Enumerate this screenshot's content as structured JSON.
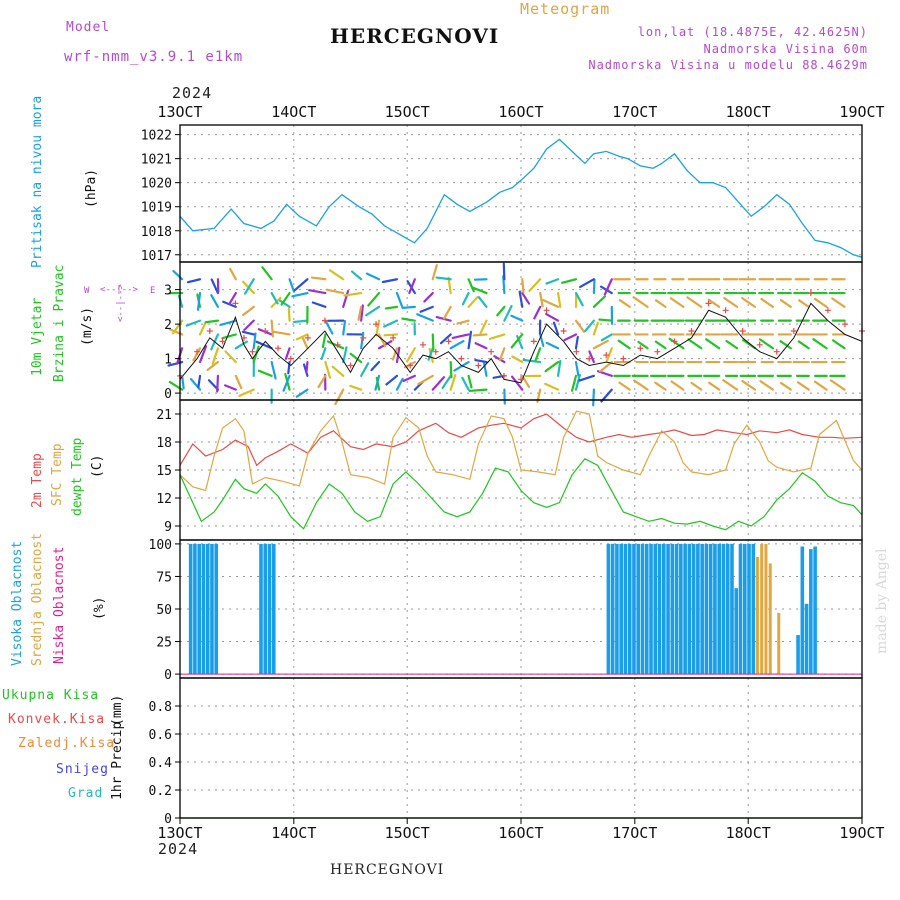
{
  "header": {
    "model_label": "Model",
    "model_name": "wrf-nmm_v3.9.1 e1km",
    "title": "HERCEGNOVI",
    "meteogram_label": "Meteogram",
    "lonlat": "lon,lat (18.4875E, 42.4625N)",
    "station_elev": "Nadmorska Visina 60m",
    "model_elev": "Nadmorska Visina u modelu 88.4629m",
    "footer_title": "HERCEGNOVI",
    "credit": "made by Angel"
  },
  "colors": {
    "pressure": "#1ba1e2",
    "temp2m": "#e84b4b",
    "sfc": "#e0a640",
    "dewpt": "#22c422",
    "cloud_high": "#1a9ee8",
    "cloud_mid": "#e0a640",
    "cloud_low": "#e0208f",
    "precip_total": "#22c422",
    "precip_conv": "#e84b4b",
    "precip_frozen": "#f08a3a",
    "snow": "#4444dd",
    "grad": "#22bbbb",
    "wind_label": "#b44ad0",
    "header_purple": "#b44ad0"
  },
  "chart_data": [
    {
      "type": "line",
      "name": "pressure",
      "ylabel_series": "Pritisak na nivou mora",
      "ylabel_unit": "(hPa)",
      "ylim": [
        1016.7,
        1022.4
      ],
      "yticks": [
        "1017",
        "1018",
        "1019",
        "1020",
        "1021",
        "1022"
      ],
      "ytick_values": [
        1017,
        1018,
        1019,
        1020,
        1021,
        1022
      ],
      "x_days": [
        0,
        0.3,
        0.8,
        1.2,
        1.5,
        1.9,
        2.2,
        2.5,
        2.8,
        3.2,
        3.5,
        3.8,
        4.2,
        4.5,
        4.8,
        5.2,
        5.5,
        5.8,
        6.2,
        6.5,
        6.8,
        7.2,
        7.5,
        7.8,
        8.0,
        8.3,
        8.6,
        8.9,
        9.2,
        9.5,
        9.7,
        10.0,
        10.3,
        10.5,
        10.8,
        11.1,
        11.3,
        11.6,
        11.9,
        12.2,
        12.5,
        12.8,
        13.1,
        13.4,
        13.7,
        14.0,
        14.3,
        14.6,
        14.9,
        15.2,
        15.5,
        15.8,
        16.0
      ],
      "values": [
        1018.6,
        1018.0,
        1018.1,
        1018.9,
        1018.3,
        1018.1,
        1018.4,
        1019.1,
        1018.6,
        1018.2,
        1019.0,
        1019.5,
        1019.0,
        1018.7,
        1018.2,
        1017.8,
        1017.5,
        1018.1,
        1019.5,
        1019.1,
        1018.8,
        1019.2,
        1019.6,
        1019.8,
        1020.1,
        1020.6,
        1021.4,
        1021.8,
        1021.3,
        1020.8,
        1021.2,
        1021.3,
        1021.1,
        1021.0,
        1020.7,
        1020.6,
        1020.8,
        1021.2,
        1020.5,
        1020.0,
        1020.0,
        1019.8,
        1019.2,
        1018.6,
        1019.0,
        1019.5,
        1019.1,
        1018.3,
        1017.6,
        1017.5,
        1017.3,
        1017.0,
        1016.9
      ]
    },
    {
      "type": "line",
      "name": "wind",
      "ylabel_series": [
        "10m Vjetar",
        "Brzina i Pravac"
      ],
      "ylabel_unit": "(m/s)",
      "compass": {
        "n": "N",
        "w": "W",
        "e": "E",
        "s": "S",
        "arrows": "<--|-->"
      },
      "ylim": [
        -0.2,
        3.8
      ],
      "yticks": [
        "0",
        "1",
        "2",
        "3"
      ],
      "ytick_values": [
        0,
        1,
        2,
        3
      ],
      "x_days": [
        0,
        0.4,
        0.7,
        1.0,
        1.3,
        1.5,
        1.7,
        2.0,
        2.3,
        2.6,
        3.0,
        3.4,
        3.7,
        4.0,
        4.3,
        4.6,
        5.0,
        5.4,
        5.7,
        6.0,
        6.3,
        6.6,
        7.0,
        7.3,
        7.6,
        8.0,
        8.3,
        8.6,
        9.0,
        9.3,
        9.6,
        10.0,
        10.4,
        10.8,
        11.2,
        11.6,
        12.0,
        12.4,
        12.8,
        13.2,
        13.6,
        14.0,
        14.4,
        14.8,
        15.2,
        15.6,
        16.0
      ],
      "gust": [
        0.5,
        1.2,
        1.8,
        1.5,
        2.6,
        1.6,
        1.2,
        1.8,
        1.3,
        1.0,
        1.6,
        2.1,
        1.4,
        0.8,
        1.6,
        2.0,
        1.6,
        0.8,
        1.4,
        1.2,
        1.5,
        1.0,
        0.8,
        1.2,
        0.5,
        0.4,
        1.5,
        2.4,
        1.8,
        1.2,
        1.0,
        1.1,
        1.0,
        1.3,
        1.2,
        1.5,
        1.8,
        2.6,
        2.4,
        1.8,
        1.4,
        1.2,
        1.8,
        2.9,
        2.4,
        2.0,
        1.8
      ],
      "speed": [
        0.4,
        1.0,
        1.6,
        1.3,
        2.2,
        1.4,
        1.0,
        1.5,
        1.1,
        0.8,
        1.3,
        1.8,
        1.2,
        0.6,
        1.3,
        1.7,
        1.3,
        0.6,
        1.1,
        1.0,
        1.2,
        0.8,
        0.6,
        1.0,
        0.4,
        0.3,
        1.2,
        2.0,
        1.5,
        1.0,
        0.8,
        0.9,
        0.8,
        1.1,
        1.0,
        1.3,
        1.6,
        2.4,
        2.2,
        1.6,
        1.2,
        1.0,
        1.6,
        2.6,
        2.1,
        1.7,
        1.5
      ]
    },
    {
      "type": "line",
      "name": "temperature",
      "ylabel_series": [
        "2m Temp",
        "SFC Temp",
        "dewpt Temp"
      ],
      "ylabel_unit": "(C)",
      "ylim": [
        7.5,
        22.5
      ],
      "yticks": [
        "9",
        "12",
        "15",
        "18",
        "21"
      ],
      "ytick_values": [
        9,
        12,
        15,
        18,
        21
      ],
      "series": [
        {
          "name": "2m Temp",
          "x_days": [
            0,
            0.3,
            0.6,
            1.0,
            1.3,
            1.6,
            1.8,
            2.0,
            2.3,
            2.6,
            3.0,
            3.3,
            3.6,
            4.0,
            4.3,
            4.6,
            5.0,
            5.3,
            5.6,
            6.0,
            6.3,
            6.6,
            7.0,
            7.3,
            7.6,
            8.0,
            8.3,
            8.6,
            9.0,
            9.3,
            9.6,
            10.0,
            10.3,
            10.6,
            11.0,
            11.3,
            11.6,
            12.0,
            12.3,
            12.6,
            13.0,
            13.3,
            13.6,
            14.0,
            14.3,
            14.6,
            15.0,
            15.3,
            15.6,
            16.0
          ],
          "values": [
            15.5,
            17.8,
            16.5,
            17.2,
            18.2,
            17.5,
            15.5,
            16.3,
            17.0,
            17.8,
            16.8,
            18.5,
            19.2,
            17.5,
            17.2,
            17.8,
            17.5,
            18.0,
            19.2,
            20.0,
            19.0,
            18.5,
            19.5,
            19.8,
            20.0,
            19.5,
            20.5,
            21.0,
            19.5,
            18.5,
            18.0,
            18.5,
            18.8,
            18.5,
            18.8,
            19.0,
            19.3,
            18.7,
            18.8,
            19.3,
            19.0,
            18.8,
            19.2,
            19.0,
            19.3,
            18.8,
            18.5,
            18.5,
            18.4,
            18.5
          ]
        },
        {
          "name": "SFC Temp",
          "x_days": [
            0,
            0.3,
            0.6,
            0.8,
            1.0,
            1.3,
            1.5,
            1.7,
            2.0,
            2.4,
            2.8,
            3.0,
            3.3,
            3.6,
            3.8,
            4.0,
            4.4,
            4.8,
            5.0,
            5.3,
            5.6,
            5.8,
            6.0,
            6.4,
            6.8,
            7.0,
            7.3,
            7.6,
            7.8,
            8.0,
            8.4,
            8.8,
            9.0,
            9.3,
            9.6,
            9.8,
            10.0,
            10.4,
            10.8,
            11.0,
            11.3,
            11.6,
            11.8,
            12.0,
            12.4,
            12.8,
            13.0,
            13.3,
            13.6,
            13.8,
            14.0,
            14.4,
            14.8,
            15.0,
            15.4,
            15.8,
            16.0
          ],
          "values": [
            14.5,
            13.2,
            12.8,
            16.5,
            19.5,
            20.5,
            19.2,
            13.5,
            14.2,
            13.8,
            13.3,
            16.8,
            19.2,
            20.8,
            18.0,
            14.5,
            14.2,
            13.5,
            18.5,
            20.6,
            19.5,
            16.5,
            14.8,
            14.5,
            14.0,
            17.8,
            20.8,
            20.5,
            18.5,
            15.0,
            14.8,
            14.5,
            18.5,
            21.3,
            21.0,
            16.5,
            15.8,
            15.0,
            14.5,
            16.5,
            19.2,
            18.0,
            15.8,
            14.8,
            14.5,
            15.0,
            17.8,
            19.8,
            18.0,
            16.0,
            15.3,
            14.8,
            15.2,
            18.8,
            20.3,
            16.0,
            15.0
          ]
        },
        {
          "name": "dewpt Temp",
          "x_days": [
            0,
            0.3,
            0.5,
            0.8,
            1.0,
            1.3,
            1.5,
            1.8,
            2.0,
            2.3,
            2.6,
            2.9,
            3.2,
            3.5,
            3.8,
            4.1,
            4.4,
            4.7,
            5.0,
            5.3,
            5.6,
            5.9,
            6.2,
            6.5,
            6.8,
            7.1,
            7.4,
            7.7,
            8.0,
            8.3,
            8.6,
            8.9,
            9.2,
            9.5,
            9.8,
            10.1,
            10.4,
            10.7,
            11.0,
            11.3,
            11.6,
            11.9,
            12.2,
            12.5,
            12.8,
            13.1,
            13.4,
            13.7,
            14.0,
            14.3,
            14.6,
            14.9,
            15.2,
            15.5,
            15.8,
            16.0
          ],
          "values": [
            14.5,
            11.5,
            9.5,
            10.5,
            11.8,
            14.0,
            13.0,
            12.5,
            13.5,
            12.2,
            10.0,
            8.7,
            11.5,
            13.5,
            12.5,
            10.5,
            9.5,
            10.0,
            13.5,
            14.8,
            13.5,
            12.0,
            10.5,
            10.0,
            10.5,
            12.5,
            15.2,
            14.8,
            12.8,
            11.5,
            11.0,
            11.5,
            14.5,
            16.2,
            15.5,
            13.0,
            10.5,
            10.0,
            9.5,
            9.8,
            9.3,
            9.2,
            9.5,
            9.0,
            8.6,
            9.5,
            9.0,
            10.0,
            11.8,
            13.0,
            14.7,
            13.8,
            12.2,
            11.5,
            11.2,
            10.2
          ]
        }
      ]
    },
    {
      "type": "bar",
      "name": "cloudiness",
      "ylabel_series": [
        "Visoka Oblacnost",
        "Srednja Oblacnost",
        "Niska Oblacnost"
      ],
      "ylabel_unit": "(%)",
      "ylim": [
        -3,
        103
      ],
      "yticks": [
        "0",
        "25",
        "50",
        "75",
        "100"
      ],
      "ytick_values": [
        0,
        25,
        50,
        75,
        100
      ],
      "series": [
        {
          "name": "Visoka Oblacnost",
          "x_days": [
            0.25,
            0.35,
            0.45,
            0.55,
            0.65,
            0.75,
            0.85,
            1.9,
            2.0,
            2.1,
            2.2,
            10.05,
            10.15,
            10.25,
            10.35,
            10.45,
            10.55,
            10.65,
            10.75,
            10.85,
            10.95,
            11.05,
            11.15,
            11.25,
            11.35,
            11.45,
            11.55,
            11.65,
            11.75,
            11.85,
            11.95,
            12.05,
            12.15,
            12.25,
            12.35,
            12.45,
            12.55,
            12.65,
            12.75,
            12.85,
            12.95,
            13.05,
            13.15,
            13.25,
            13.35,
            13.45,
            14.5,
            14.6,
            14.7,
            14.8,
            14.9
          ],
          "values": [
            100,
            100,
            100,
            100,
            100,
            100,
            100,
            100,
            100,
            100,
            100,
            100,
            100,
            100,
            100,
            100,
            100,
            100,
            100,
            100,
            100,
            100,
            100,
            100,
            100,
            100,
            100,
            100,
            100,
            100,
            100,
            100,
            100,
            100,
            100,
            100,
            100,
            100,
            100,
            100,
            100,
            66,
            100,
            100,
            100,
            100,
            30,
            98,
            54,
            96,
            98
          ]
        },
        {
          "name": "Srednja Oblacnost",
          "x_days": [
            0.3,
            0.4,
            0.6,
            0.8,
            10.1,
            10.3,
            10.5,
            10.7,
            10.9,
            11.1,
            11.3,
            11.5,
            11.7,
            11.9,
            12.1,
            12.3,
            12.5,
            12.7,
            12.9,
            13.1,
            13.3,
            13.5,
            13.6,
            13.7,
            13.8,
            14.0
          ],
          "values": [
            100,
            55,
            100,
            100,
            100,
            100,
            100,
            100,
            100,
            100,
            100,
            100,
            100,
            100,
            100,
            100,
            100,
            100,
            100,
            100,
            100,
            90,
            100,
            100,
            85,
            47
          ]
        },
        {
          "name": "Niska Oblacnost",
          "x_days": [
            0.0,
            16.0
          ],
          "values": [
            0,
            0
          ]
        }
      ]
    },
    {
      "type": "line",
      "name": "precipitation",
      "ylabel_series": "1hr Precip",
      "ylabel_unit": "(mm)",
      "legend": [
        "Ukupna Kisa",
        "Konvek.Kisa",
        "Zaledj.Kisa",
        "Snijeg",
        "Grad"
      ],
      "ylim": [
        0,
        1.0
      ],
      "yticks": [
        "0",
        "0.2",
        "0.4",
        "0.6",
        "0.8"
      ],
      "ytick_values": [
        0,
        0.2,
        0.4,
        0.6,
        0.8
      ],
      "x_days": [
        0,
        16
      ],
      "values": [
        0,
        0
      ]
    }
  ],
  "xaxis": {
    "year": "2024",
    "labels": [
      "13OCT",
      "14OCT",
      "15OCT",
      "16OCT",
      "17OCT",
      "18OCT",
      "19OCT"
    ],
    "label_days": [
      0,
      2.67,
      5.33,
      8.0,
      10.67,
      13.33,
      16.0
    ],
    "range_days": [
      0,
      16
    ]
  }
}
